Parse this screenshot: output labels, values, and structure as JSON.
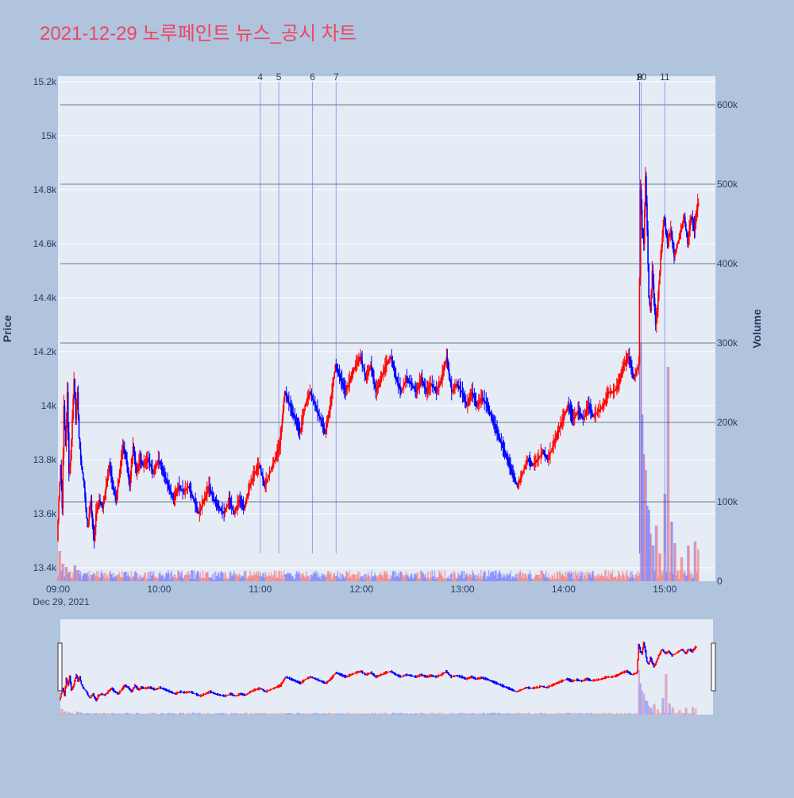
{
  "title": "2021-12-29 노루페인트 뉴스_공시 차트",
  "colors": {
    "page_bg": "#b0c4de",
    "plot_bg": "#e5ecf6",
    "title": "#ef4560",
    "up": "#ff0000",
    "down": "#0000ff",
    "grid": "#ffffff",
    "volume_grid": "#6b7a8c",
    "text": "#2a3f5f",
    "news_line": "#5a6ee0"
  },
  "chart_data": {
    "type": "candlestick",
    "session_date_label": "Dec 29, 2021",
    "y_axis": {
      "title": "Price",
      "range": [
        13350,
        15220
      ],
      "tick_values": [
        13400,
        13600,
        13800,
        14000,
        14200,
        14400,
        14600,
        14800,
        15000,
        15200
      ],
      "tick_labels": [
        "13.4k",
        "13.6k",
        "13.8k",
        "14k",
        "14.2k",
        "14.4k",
        "14.6k",
        "14.8k",
        "15k",
        "15.2k"
      ]
    },
    "y2_axis": {
      "title": "Volume",
      "range": [
        0,
        636000
      ],
      "tick_values": [
        0,
        100000,
        200000,
        300000,
        400000,
        500000,
        600000
      ],
      "tick_labels": [
        "0",
        "100k",
        "200k",
        "300k",
        "400k",
        "500k",
        "600k"
      ]
    },
    "x_axis": {
      "range_minutes": [
        540,
        930
      ],
      "tick_values": [
        540,
        600,
        660,
        720,
        780,
        840,
        900
      ],
      "tick_labels": [
        "09:00",
        "10:00",
        "11:00",
        "12:00",
        "13:00",
        "14:00",
        "15:00"
      ]
    },
    "news_markers": [
      {
        "label": "4",
        "time": "11:00"
      },
      {
        "label": "5",
        "time": "11:11"
      },
      {
        "label": "6",
        "time": "11:31"
      },
      {
        "label": "7",
        "time": "11:45"
      },
      {
        "label": "8",
        "time": "14:45"
      },
      {
        "label": "9",
        "time": "14:45"
      },
      {
        "label": "10",
        "time": "14:46"
      },
      {
        "label": "11",
        "time": "15:00"
      }
    ],
    "path_points": [
      [
        "09:00",
        13500
      ],
      [
        "09:01",
        13650
      ],
      [
        "09:02",
        13780
      ],
      [
        "09:03",
        13620
      ],
      [
        "09:04",
        14000
      ],
      [
        "09:05",
        13850
      ],
      [
        "09:06",
        14050
      ],
      [
        "09:07",
        13750
      ],
      [
        "09:08",
        13800
      ],
      [
        "09:09",
        13950
      ],
      [
        "09:10",
        14100
      ],
      [
        "09:11",
        13950
      ],
      [
        "09:12",
        14050
      ],
      [
        "09:13",
        13880
      ],
      [
        "09:14",
        13800
      ],
      [
        "09:15",
        13750
      ],
      [
        "09:16",
        13700
      ],
      [
        "09:17",
        13620
      ],
      [
        "09:18",
        13550
      ],
      [
        "09:19",
        13600
      ],
      [
        "09:20",
        13650
      ],
      [
        "09:21",
        13550
      ],
      [
        "09:22",
        13500
      ],
      [
        "09:23",
        13600
      ],
      [
        "09:25",
        13650
      ],
      [
        "09:27",
        13620
      ],
      [
        "09:29",
        13700
      ],
      [
        "09:31",
        13780
      ],
      [
        "09:33",
        13700
      ],
      [
        "09:35",
        13650
      ],
      [
        "09:37",
        13750
      ],
      [
        "09:39",
        13850
      ],
      [
        "09:41",
        13800
      ],
      [
        "09:43",
        13700
      ],
      [
        "09:45",
        13850
      ],
      [
        "09:47",
        13750
      ],
      [
        "09:49",
        13800
      ],
      [
        "09:51",
        13780
      ],
      [
        "09:54",
        13800
      ],
      [
        "09:57",
        13750
      ],
      [
        "10:00",
        13800
      ],
      [
        "10:03",
        13750
      ],
      [
        "10:06",
        13700
      ],
      [
        "10:09",
        13650
      ],
      [
        "10:12",
        13700
      ],
      [
        "10:15",
        13680
      ],
      [
        "10:18",
        13700
      ],
      [
        "10:21",
        13650
      ],
      [
        "10:24",
        13600
      ],
      [
        "10:27",
        13650
      ],
      [
        "10:30",
        13700
      ],
      [
        "10:33",
        13650
      ],
      [
        "10:36",
        13620
      ],
      [
        "10:39",
        13600
      ],
      [
        "10:42",
        13650
      ],
      [
        "10:45",
        13600
      ],
      [
        "10:48",
        13650
      ],
      [
        "10:51",
        13620
      ],
      [
        "10:54",
        13700
      ],
      [
        "10:57",
        13750
      ],
      [
        "11:00",
        13780
      ],
      [
        "11:03",
        13700
      ],
      [
        "11:06",
        13750
      ],
      [
        "11:09",
        13800
      ],
      [
        "11:12",
        13850
      ],
      [
        "11:15",
        14050
      ],
      [
        "11:18",
        14000
      ],
      [
        "11:21",
        13950
      ],
      [
        "11:24",
        13900
      ],
      [
        "11:27",
        14000
      ],
      [
        "11:30",
        14050
      ],
      [
        "11:33",
        14000
      ],
      [
        "11:36",
        13950
      ],
      [
        "11:39",
        13900
      ],
      [
        "11:42",
        14000
      ],
      [
        "11:45",
        14150
      ],
      [
        "11:48",
        14100
      ],
      [
        "11:51",
        14050
      ],
      [
        "11:54",
        14100
      ],
      [
        "11:57",
        14150
      ],
      [
        "12:00",
        14180
      ],
      [
        "12:03",
        14100
      ],
      [
        "12:06",
        14150
      ],
      [
        "12:09",
        14050
      ],
      [
        "12:12",
        14100
      ],
      [
        "12:15",
        14150
      ],
      [
        "12:18",
        14180
      ],
      [
        "12:21",
        14100
      ],
      [
        "12:24",
        14050
      ],
      [
        "12:27",
        14100
      ],
      [
        "12:30",
        14080
      ],
      [
        "12:33",
        14050
      ],
      [
        "12:36",
        14100
      ],
      [
        "12:39",
        14050
      ],
      [
        "12:42",
        14080
      ],
      [
        "12:45",
        14050
      ],
      [
        "12:48",
        14100
      ],
      [
        "12:51",
        14180
      ],
      [
        "12:54",
        14050
      ],
      [
        "12:57",
        14080
      ],
      [
        "13:00",
        14050
      ],
      [
        "13:03",
        14000
      ],
      [
        "13:06",
        14050
      ],
      [
        "13:09",
        14000
      ],
      [
        "13:12",
        14030
      ],
      [
        "13:15",
        14000
      ],
      [
        "13:18",
        13950
      ],
      [
        "13:21",
        13900
      ],
      [
        "13:24",
        13850
      ],
      [
        "13:27",
        13800
      ],
      [
        "13:30",
        13750
      ],
      [
        "13:33",
        13700
      ],
      [
        "13:36",
        13750
      ],
      [
        "13:39",
        13800
      ],
      [
        "13:42",
        13780
      ],
      [
        "13:45",
        13800
      ],
      [
        "13:48",
        13830
      ],
      [
        "13:51",
        13800
      ],
      [
        "13:54",
        13850
      ],
      [
        "13:57",
        13900
      ],
      [
        "14:00",
        13950
      ],
      [
        "14:03",
        14000
      ],
      [
        "14:06",
        13950
      ],
      [
        "14:09",
        13980
      ],
      [
        "14:12",
        13950
      ],
      [
        "14:15",
        14000
      ],
      [
        "14:18",
        13960
      ],
      [
        "14:21",
        13980
      ],
      [
        "14:24",
        14000
      ],
      [
        "14:27",
        14050
      ],
      [
        "14:30",
        14050
      ],
      [
        "14:33",
        14080
      ],
      [
        "14:36",
        14150
      ],
      [
        "14:39",
        14180
      ],
      [
        "14:42",
        14100
      ],
      [
        "14:45",
        14150
      ],
      [
        "14:46",
        14800
      ],
      [
        "14:47",
        14650
      ],
      [
        "14:48",
        14600
      ],
      [
        "14:49",
        14850
      ],
      [
        "14:50",
        14650
      ],
      [
        "14:51",
        14400
      ],
      [
        "14:52",
        14350
      ],
      [
        "14:53",
        14500
      ],
      [
        "14:54",
        14400
      ],
      [
        "14:55",
        14300
      ],
      [
        "14:56",
        14350
      ],
      [
        "14:57",
        14450
      ],
      [
        "14:58",
        14550
      ],
      [
        "15:00",
        14700
      ],
      [
        "15:02",
        14600
      ],
      [
        "15:04",
        14650
      ],
      [
        "15:06",
        14550
      ],
      [
        "15:08",
        14600
      ],
      [
        "15:10",
        14650
      ],
      [
        "15:12",
        14700
      ],
      [
        "15:14",
        14600
      ],
      [
        "15:16",
        14700
      ],
      [
        "15:18",
        14650
      ],
      [
        "15:20",
        14750
      ]
    ],
    "volume_points": [
      [
        "09:01",
        38000
      ],
      [
        "09:03",
        22000
      ],
      [
        "09:05",
        18000
      ],
      [
        "09:07",
        12000
      ],
      [
        "09:10",
        20000
      ],
      [
        "09:12",
        14000
      ],
      [
        "09:16",
        10000
      ],
      [
        "09:20",
        8000
      ],
      [
        "09:40",
        12000
      ],
      [
        "10:30",
        5000
      ],
      [
        "11:15",
        9000
      ],
      [
        "11:45",
        7000
      ],
      [
        "12:00",
        6000
      ],
      [
        "12:45",
        5000
      ],
      [
        "13:30",
        6000
      ],
      [
        "13:45",
        8000
      ],
      [
        "14:30",
        5000
      ],
      [
        "14:46",
        300000
      ],
      [
        "14:47",
        210000
      ],
      [
        "14:48",
        160000
      ],
      [
        "14:49",
        140000
      ],
      [
        "14:50",
        95000
      ],
      [
        "14:51",
        90000
      ],
      [
        "14:52",
        60000
      ],
      [
        "14:53",
        45000
      ],
      [
        "14:55",
        70000
      ],
      [
        "14:57",
        35000
      ],
      [
        "15:00",
        110000
      ],
      [
        "15:02",
        270000
      ],
      [
        "15:04",
        75000
      ],
      [
        "15:06",
        48000
      ],
      [
        "15:10",
        30000
      ],
      [
        "15:14",
        45000
      ],
      [
        "15:18",
        50000
      ],
      [
        "15:20",
        40000
      ]
    ]
  }
}
